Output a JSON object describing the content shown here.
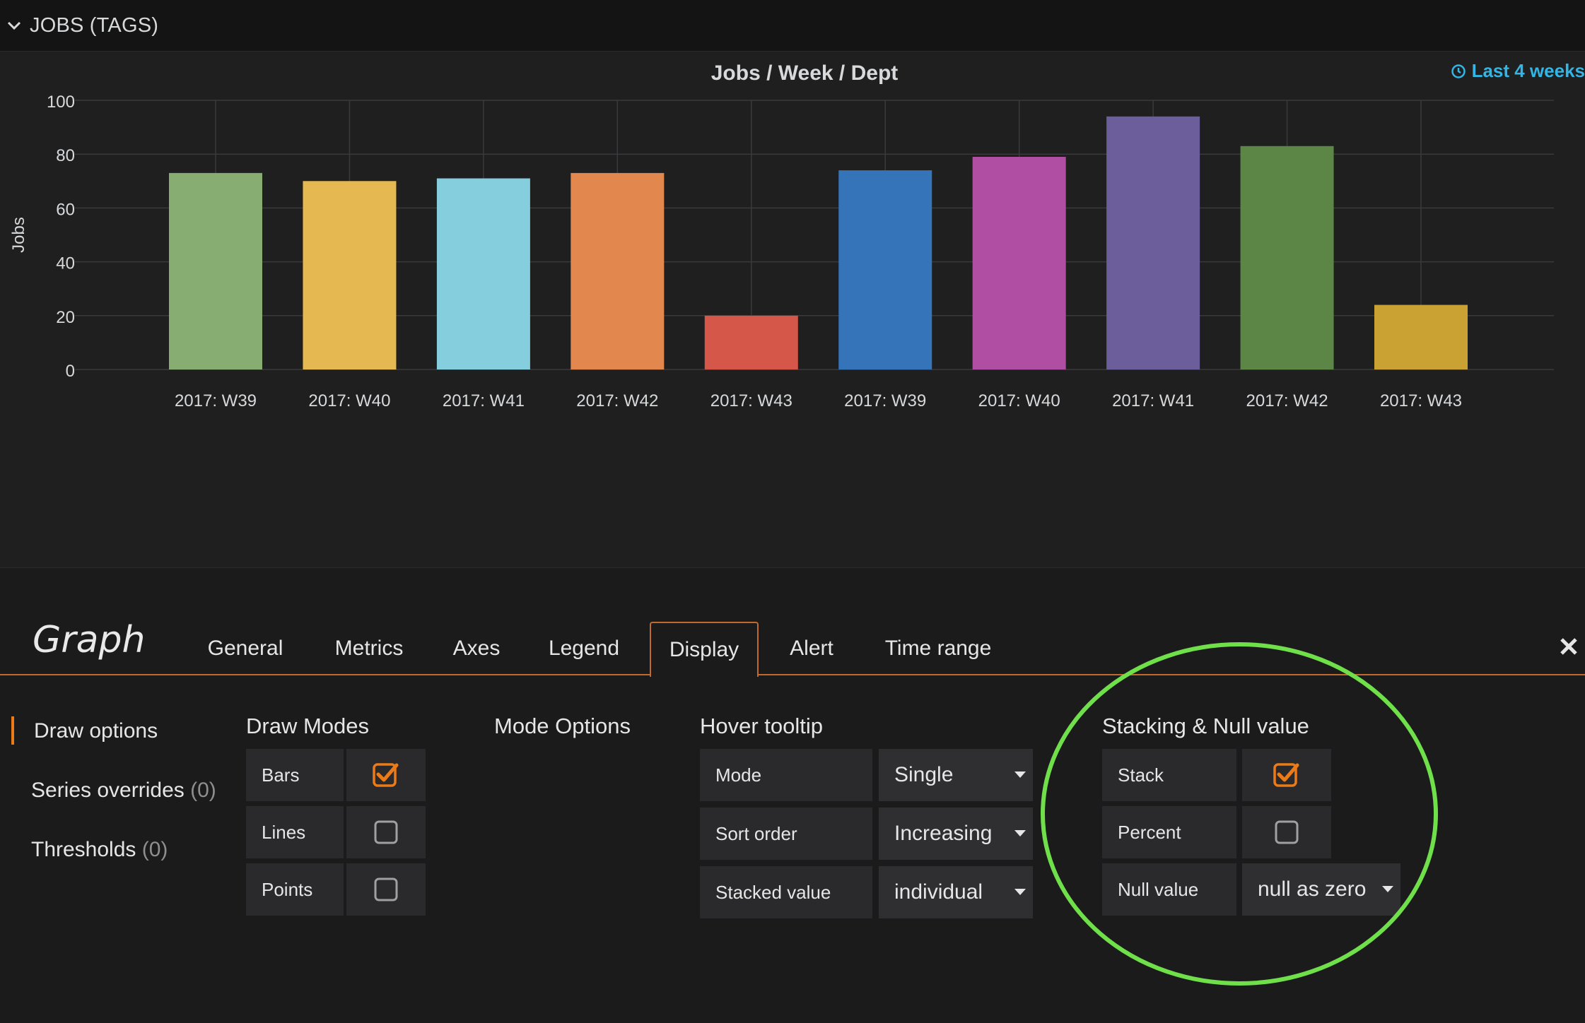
{
  "row": {
    "title": "JOBS (TAGS)",
    "chevron_icon": "chevron-down-icon"
  },
  "panel": {
    "title": "Jobs / Week / Dept",
    "time_range": "Last 4 weeks",
    "time_icon": "clock-icon"
  },
  "chart_data": {
    "type": "bar",
    "title": "Jobs / Week / Dept",
    "ylabel": "Jobs",
    "xlabel": "",
    "ylim": [
      0,
      100
    ],
    "yticks": [
      0,
      20,
      40,
      60,
      80,
      100
    ],
    "grid": true,
    "categories": [
      "2017: W39",
      "2017: W40",
      "2017: W41",
      "2017: W42",
      "2017: W43",
      "2017: W39",
      "2017: W40",
      "2017: W41",
      "2017: W42",
      "2017: W43"
    ],
    "values": [
      73,
      70,
      71,
      73,
      20,
      74,
      79,
      94,
      83,
      24
    ],
    "colors": [
      "#87ad73",
      "#e5b851",
      "#85cedd",
      "#e2874d",
      "#d4574a",
      "#3574b8",
      "#b04ea3",
      "#6c5d9b",
      "#5c8645",
      "#c9a233"
    ]
  },
  "editor": {
    "title": "Graph",
    "tabs": [
      {
        "label": "General"
      },
      {
        "label": "Metrics"
      },
      {
        "label": "Axes"
      },
      {
        "label": "Legend"
      },
      {
        "label": "Display",
        "active": true
      },
      {
        "label": "Alert"
      },
      {
        "label": "Time range"
      }
    ],
    "side_nav": {
      "draw_options": "Draw options",
      "series_overrides": "Series overrides",
      "series_overrides_count": "(0)",
      "thresholds": "Thresholds",
      "thresholds_count": "(0)"
    },
    "draw_modes": {
      "title": "Draw Modes",
      "bars": {
        "label": "Bars",
        "checked": true
      },
      "lines": {
        "label": "Lines",
        "checked": false
      },
      "points": {
        "label": "Points",
        "checked": false
      }
    },
    "mode_options": {
      "title": "Mode Options"
    },
    "hover_tooltip": {
      "title": "Hover tooltip",
      "mode": {
        "label": "Mode",
        "value": "Single"
      },
      "sort_order": {
        "label": "Sort order",
        "value": "Increasing"
      },
      "stacked_value": {
        "label": "Stacked value",
        "value": "individual"
      }
    },
    "stacking": {
      "title": "Stacking & Null value",
      "stack": {
        "label": "Stack",
        "checked": true
      },
      "percent": {
        "label": "Percent",
        "checked": false
      },
      "null_value": {
        "label": "Null value",
        "value": "null as zero"
      }
    },
    "annotation_color": "#6fe04a",
    "accent_color": "#eb7b18"
  }
}
